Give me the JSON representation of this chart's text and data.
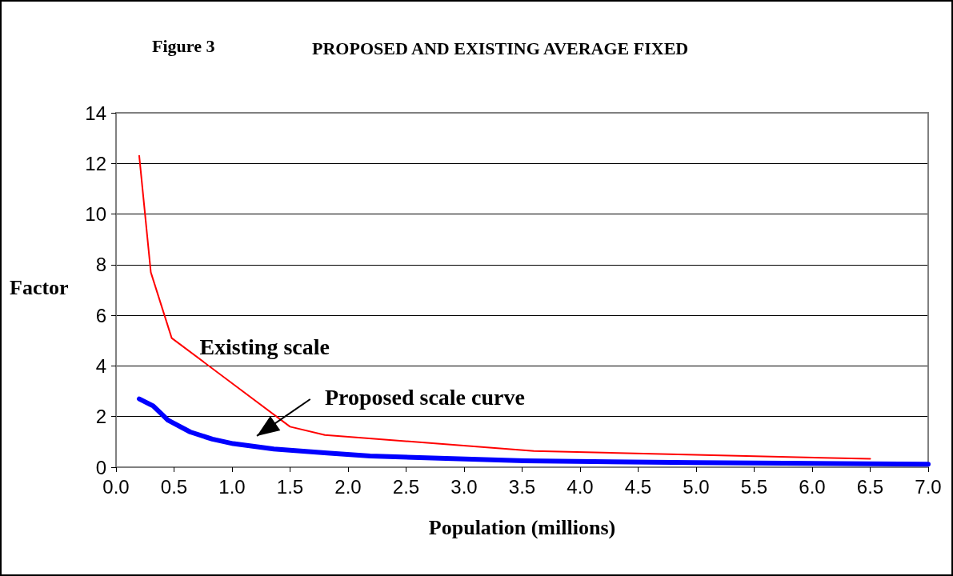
{
  "chart_data": {
    "type": "line",
    "title": "PROPOSED AND EXISTING AVERAGE FIXED",
    "annotations": [
      "Figure 3",
      "Proposed scale curve"
    ],
    "xlabel": "Population (millions)",
    "ylabel": "Factor",
    "series": [
      {
        "name": "Existing scale",
        "color": "#ff0000",
        "x": [
          0.2,
          0.3,
          0.48,
          1.5,
          1.8,
          3.6,
          6.5
        ],
        "values": [
          12.3,
          7.7,
          5.1,
          1.6,
          1.27,
          0.64,
          0.33
        ]
      },
      {
        "color": "#0000ff",
        "x": [
          0.2,
          0.32,
          0.45,
          0.64,
          0.83,
          1.01,
          1.36,
          1.82,
          2.19,
          3.52,
          4.98,
          7.0
        ],
        "values": [
          2.7,
          2.42,
          1.85,
          1.39,
          1.11,
          0.93,
          0.72,
          0.56,
          0.44,
          0.25,
          0.18,
          0.12
        ]
      }
    ],
    "xlim": [
      0,
      7
    ],
    "xticks": [
      {
        "value": 0,
        "label": "0.0"
      },
      {
        "value": 0.5,
        "label": "0.5"
      },
      {
        "value": 1,
        "label": "1.0"
      },
      {
        "value": 1.5,
        "label": "1.5"
      },
      {
        "value": 2,
        "label": "2.0"
      },
      {
        "value": 2.5,
        "label": "2.5"
      },
      {
        "value": 3,
        "label": "3.0"
      },
      {
        "value": 3.5,
        "label": "3.5"
      },
      {
        "value": 4,
        "label": "4.0"
      },
      {
        "value": 4.5,
        "label": "4.5"
      },
      {
        "value": 5,
        "label": "5.0"
      },
      {
        "value": 5.5,
        "label": "5.5"
      },
      {
        "value": 6,
        "label": "6.0"
      },
      {
        "value": 6.5,
        "label": "6.5"
      },
      {
        "value": 7,
        "label": "7.0"
      }
    ],
    "ylim": [
      0,
      14
    ],
    "yticks": [
      0,
      2,
      4,
      6,
      8,
      10,
      12,
      14
    ],
    "grid": "y",
    "legend": false,
    "marker": "none",
    "line_style": "solid"
  }
}
